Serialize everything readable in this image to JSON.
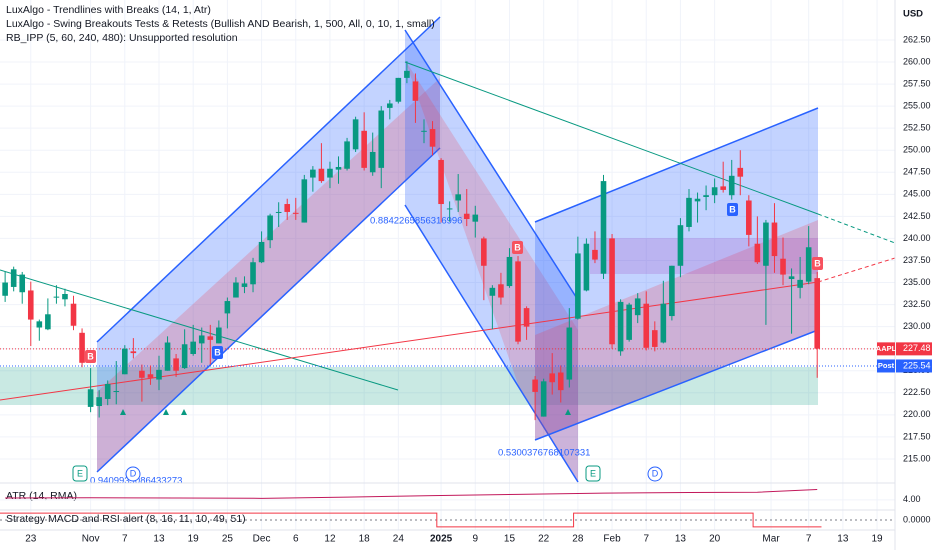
{
  "header": {
    "lines": [
      "LuxAlgo - Trendlines with Breaks (14, 1, Atr)",
      "LuxAlgo - Swing Breakouts Tests & Retests (Bullish AND Bearish, 1, 500, All, 0, 10, 1, small)",
      "RB_IPP (5, 60, 240, 480): Unsupported resolution"
    ]
  },
  "chart_data": {
    "type": "candlestick",
    "symbol": "AAPL",
    "currency": "USD",
    "up_color": "#089981",
    "down_color": "#f23645",
    "candles": {
      "name": "AAPL",
      "values": [
        [
          233.5,
          236.2,
          232.8,
          235.0
        ],
        [
          234.5,
          236.8,
          234.0,
          236.5
        ],
        [
          233.9,
          236.2,
          232.6,
          235.9
        ],
        [
          234.1,
          235.1,
          227.8,
          230.8
        ],
        [
          229.9,
          230.8,
          228.4,
          230.6
        ],
        [
          229.7,
          233.2,
          229.6,
          231.4
        ],
        [
          233.3,
          234.7,
          232.6,
          233.4
        ],
        [
          233.1,
          234.3,
          232.3,
          233.7
        ],
        [
          232.6,
          233.5,
          229.6,
          230.1
        ],
        [
          229.3,
          229.8,
          225.4,
          225.9
        ],
        [
          220.9,
          225.3,
          220.3,
          222.9
        ],
        [
          221.0,
          222.8,
          219.7,
          222.0
        ],
        [
          221.8,
          223.9,
          221.1,
          223.5
        ],
        [
          222.6,
          226.1,
          221.2,
          222.7
        ],
        [
          224.6,
          227.9,
          224.6,
          227.5
        ],
        [
          227.2,
          228.7,
          226.4,
          227.0
        ],
        [
          225.0,
          225.7,
          221.5,
          224.2
        ],
        [
          224.6,
          225.6,
          223.4,
          224.2
        ],
        [
          224.0,
          226.7,
          222.8,
          225.1
        ],
        [
          225.0,
          228.9,
          225.0,
          228.2
        ],
        [
          226.4,
          226.9,
          224.3,
          225.0
        ],
        [
          225.3,
          229.7,
          225.2,
          228.0
        ],
        [
          226.9,
          230.2,
          226.7,
          228.3
        ],
        [
          228.1,
          229.9,
          225.9,
          229.0
        ],
        [
          228.9,
          230.2,
          225.7,
          228.5
        ],
        [
          228.1,
          230.7,
          228.1,
          229.9
        ],
        [
          231.5,
          233.3,
          229.8,
          232.9
        ],
        [
          233.3,
          235.6,
          233.3,
          235.0
        ],
        [
          234.5,
          235.7,
          233.8,
          234.9
        ],
        [
          234.8,
          237.8,
          233.9,
          237.3
        ],
        [
          237.3,
          240.8,
          237.2,
          239.6
        ],
        [
          239.8,
          242.8,
          238.9,
          242.6
        ],
        [
          242.9,
          244.1,
          241.3,
          243.0
        ],
        [
          243.9,
          244.5,
          242.1,
          243.0
        ],
        [
          242.9,
          244.6,
          242.1,
          242.8
        ],
        [
          241.8,
          247.2,
          241.8,
          246.7
        ],
        [
          246.9,
          248.2,
          245.3,
          247.8
        ],
        [
          247.9,
          250.8,
          246.3,
          246.5
        ],
        [
          246.9,
          248.7,
          245.7,
          247.9
        ],
        [
          247.8,
          249.3,
          246.2,
          248.1
        ],
        [
          247.9,
          251.4,
          247.7,
          251.0
        ],
        [
          250.1,
          253.8,
          249.8,
          253.5
        ],
        [
          252.2,
          254.3,
          247.7,
          248.0
        ],
        [
          247.5,
          252.0,
          247.1,
          249.8
        ],
        [
          248.0,
          255.0,
          245.7,
          254.5
        ],
        [
          254.8,
          255.7,
          253.5,
          255.3
        ],
        [
          255.5,
          258.2,
          255.3,
          258.2
        ],
        [
          258.2,
          260.1,
          257.6,
          259.0
        ],
        [
          257.8,
          258.7,
          253.1,
          255.6
        ],
        [
          252.2,
          253.5,
          250.8,
          252.2
        ],
        [
          252.4,
          253.3,
          249.4,
          250.4
        ],
        [
          248.9,
          249.1,
          241.8,
          243.9
        ],
        [
          243.4,
          244.2,
          241.9,
          243.4
        ],
        [
          244.3,
          247.3,
          243.0,
          245.0
        ],
        [
          242.8,
          245.6,
          241.4,
          242.2
        ],
        [
          241.9,
          243.7,
          240.1,
          242.7
        ],
        [
          240.0,
          240.2,
          233.0,
          236.9
        ],
        [
          233.5,
          234.7,
          229.7,
          234.4
        ],
        [
          234.8,
          236.1,
          232.5,
          233.3
        ],
        [
          234.6,
          238.9,
          234.4,
          237.9
        ],
        [
          237.4,
          238.0,
          228.0,
          228.3
        ],
        [
          232.1,
          232.3,
          228.5,
          230.0
        ],
        [
          224.0,
          224.4,
          219.4,
          222.6
        ],
        [
          219.8,
          224.1,
          219.8,
          223.8
        ],
        [
          224.7,
          227.0,
          222.3,
          223.7
        ],
        [
          224.8,
          225.6,
          221.4,
          222.8
        ],
        [
          224.0,
          232.1,
          223.1,
          229.9
        ],
        [
          230.9,
          240.2,
          230.8,
          238.3
        ],
        [
          234.1,
          240.0,
          234.0,
          239.4
        ],
        [
          238.7,
          240.8,
          237.2,
          237.6
        ],
        [
          236.0,
          247.2,
          235.4,
          246.5
        ],
        [
          240.0,
          240.5,
          227.5,
          228.0
        ],
        [
          227.2,
          233.1,
          226.7,
          232.8
        ],
        [
          228.5,
          232.7,
          228.3,
          232.5
        ],
        [
          231.3,
          233.8,
          230.4,
          233.2
        ],
        [
          232.6,
          234.0,
          227.3,
          227.6
        ],
        [
          229.6,
          230.6,
          227.2,
          227.7
        ],
        [
          228.2,
          235.2,
          228.1,
          232.6
        ],
        [
          231.2,
          236.9,
          230.7,
          236.9
        ],
        [
          236.9,
          242.3,
          235.6,
          241.5
        ],
        [
          241.3,
          245.6,
          240.8,
          244.6
        ],
        [
          244.2,
          245.2,
          241.8,
          244.5
        ],
        [
          244.7,
          246.0,
          243.2,
          244.9
        ],
        [
          244.9,
          246.8,
          244.0,
          245.8
        ],
        [
          245.9,
          248.7,
          245.2,
          245.5
        ],
        [
          244.9,
          248.9,
          244.4,
          247.1
        ],
        [
          248.0,
          250.0,
          244.9,
          247.0
        ],
        [
          244.3,
          244.9,
          239.1,
          240.4
        ],
        [
          239.4,
          242.5,
          237.1,
          237.3
        ],
        [
          236.9,
          242.1,
          230.2,
          241.8
        ],
        [
          241.8,
          244.0,
          236.1,
          238.0
        ],
        [
          237.7,
          240.1,
          234.7,
          235.9
        ],
        [
          235.4,
          236.6,
          229.2,
          235.7
        ],
        [
          234.4,
          237.9,
          233.2,
          235.3
        ],
        [
          235.1,
          241.4,
          234.8,
          239.0
        ],
        [
          235.5,
          236.2,
          224.2,
          227.5
        ]
      ]
    },
    "xlim": [
      -0.6,
      104.1
    ],
    "xticks": [
      {
        "value": 3,
        "label": "23"
      },
      {
        "value": 10,
        "label": "Nov"
      },
      {
        "value": 14,
        "label": "7"
      },
      {
        "value": 18,
        "label": "13"
      },
      {
        "value": 22,
        "label": "19"
      },
      {
        "value": 26,
        "label": "25"
      },
      {
        "value": 30,
        "label": "Dec"
      },
      {
        "value": 34,
        "label": "6"
      },
      {
        "value": 38,
        "label": "12"
      },
      {
        "value": 42,
        "label": "18"
      },
      {
        "value": 46,
        "label": "24"
      },
      {
        "value": 51,
        "label": "2025"
      },
      {
        "value": 55,
        "label": "9"
      },
      {
        "value": 59,
        "label": "15"
      },
      {
        "value": 63,
        "label": "22"
      },
      {
        "value": 67,
        "label": "28"
      },
      {
        "value": 71,
        "label": "Feb"
      },
      {
        "value": 75,
        "label": "7"
      },
      {
        "value": 79,
        "label": "13"
      },
      {
        "value": 83,
        "label": "20"
      },
      {
        "value": 89.6,
        "label": "Mar"
      },
      {
        "value": 94,
        "label": "7"
      },
      {
        "value": 98,
        "label": "13"
      },
      {
        "value": 102,
        "label": "19"
      }
    ],
    "ylim": [
      212.5,
      267.03
    ],
    "yticks": [
      {
        "value": 215,
        "label": "215.00"
      },
      {
        "value": 217.5,
        "label": "217.50"
      },
      {
        "value": 220,
        "label": "220.00"
      },
      {
        "value": 222.5,
        "label": "222.50"
      },
      {
        "value": 225,
        "label": "225.00"
      },
      {
        "value": 227.5,
        "label": "227.50"
      },
      {
        "value": 230,
        "label": "230.00"
      },
      {
        "value": 232.5,
        "label": "232.50"
      },
      {
        "value": 235,
        "label": "235.00"
      },
      {
        "value": 237.5,
        "label": "237.50"
      },
      {
        "value": 240,
        "label": "240.00"
      },
      {
        "value": 242.5,
        "label": "242.50"
      },
      {
        "value": 245,
        "label": "245.00"
      },
      {
        "value": 247.5,
        "label": "247.50"
      },
      {
        "value": 250,
        "label": "250.00"
      },
      {
        "value": 252.5,
        "label": "252.50"
      },
      {
        "value": 255,
        "label": "255.00"
      },
      {
        "value": 257.5,
        "label": "257.50"
      },
      {
        "value": 260,
        "label": "260.00"
      },
      {
        "value": 262.5,
        "label": "262.50"
      }
    ],
    "last_price": 227.48,
    "post": {
      "label": "Post",
      "value": 225.54
    },
    "annotations": {
      "levels": [
        "0.8842265856316996",
        "0.5300376768107331",
        "0.9409939086433273"
      ],
      "breakout": "B",
      "earnings": "E",
      "dividend": "D"
    }
  },
  "atr_pane": {
    "label": "ATR (14, RMA)",
    "ylim": [
      2.5,
      6.6
    ],
    "yticks": [
      {
        "value": 4,
        "label": "4.00"
      }
    ],
    "x": [
      0,
      10,
      20,
      30,
      40,
      50,
      60,
      70,
      80,
      88,
      95
    ],
    "values": [
      4.3,
      4.35,
      4.3,
      4.25,
      4.45,
      4.7,
      4.9,
      5.1,
      5.2,
      5.25,
      5.7
    ],
    "color": "#c2185b"
  },
  "strategy_pane": {
    "label": "Strategy MACD and RSI alert (8, 16, 11, 10, 49, 51)",
    "ylim": [
      -1.3,
      1.3
    ],
    "yticks": [
      {
        "value": 0,
        "label": "0.0000"
      }
    ],
    "x": [
      -0.6,
      50.5,
      50.5,
      66.5,
      66.5,
      87.5,
      87.5,
      95.5
    ],
    "values": [
      1,
      1,
      -1,
      -1,
      1,
      1,
      -1,
      -1
    ],
    "color": "#f23645"
  }
}
